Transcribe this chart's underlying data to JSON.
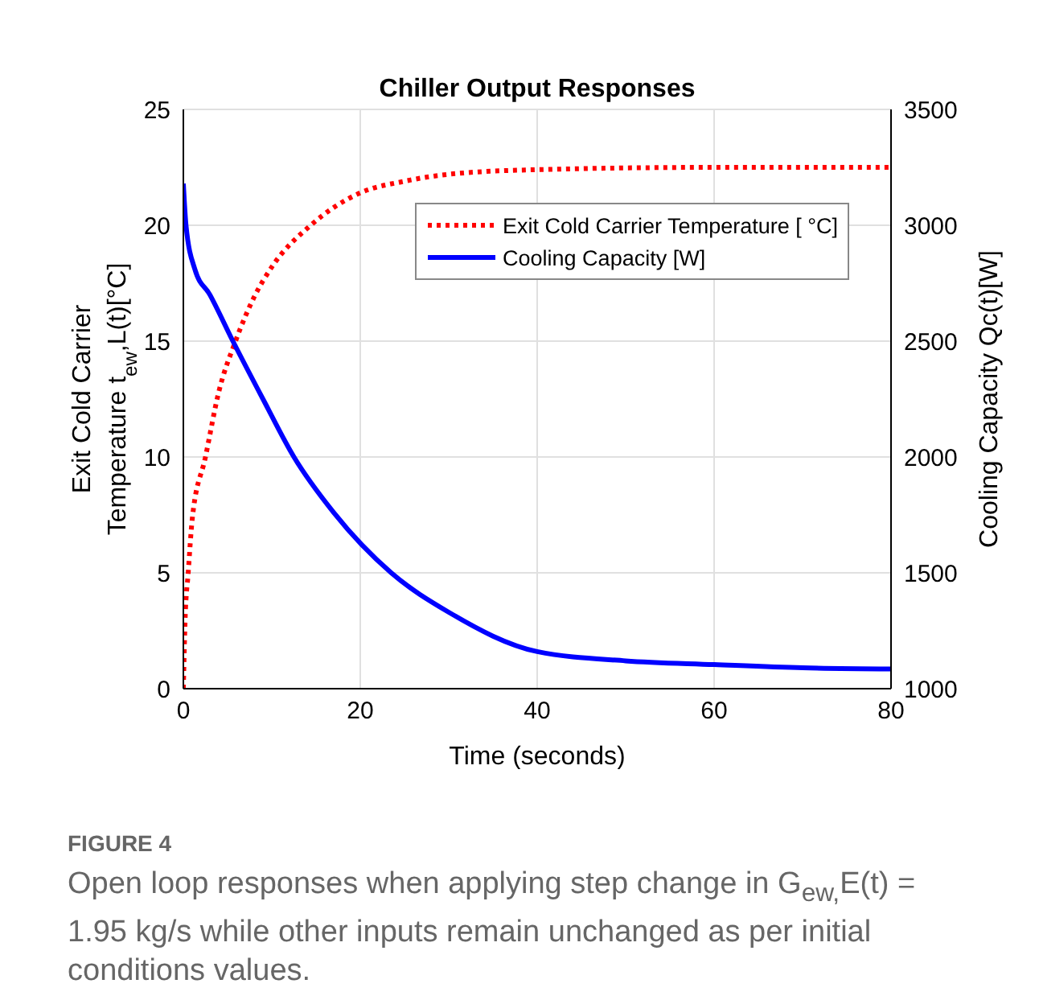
{
  "chart_data": {
    "type": "line",
    "title": "Chiller Output Responses",
    "xlabel": "Time (seconds)",
    "ylabel": "Exit Cold Carrier\nTemperature t$_{ew}$,L(t)[°C]",
    "y2label": "Cooling Capacity Qc(t)[W]",
    "xlim": [
      0,
      80
    ],
    "xticks": [
      0,
      20,
      40,
      60,
      80
    ],
    "ylim": [
      0,
      25
    ],
    "yticks": [
      0,
      5,
      10,
      15,
      20,
      25
    ],
    "y2lim": [
      1000,
      3500
    ],
    "y2ticks": [
      1000,
      1500,
      2000,
      2500,
      3000,
      3500
    ],
    "grid": true,
    "legend": "top right",
    "marker": "none",
    "series": [
      {
        "name": "Exit Cold Carrier Temperature [ °C]",
        "color": "#ff0000",
        "line_style": "dotted",
        "x": [
          0,
          0.2,
          0.55,
          1,
          2.5,
          4,
          5.9,
          8,
          10,
          14.4,
          20,
          25,
          30,
          40,
          60,
          80
        ],
        "values": [
          0,
          3,
          5,
          7.3,
          10,
          12.8,
          15,
          16.9,
          18.2,
          20,
          21.4,
          21.9,
          22.2,
          22.4,
          22.5,
          22.5
        ]
      },
      {
        "name": "Cooling Capacity [W]",
        "color": "#0000ff",
        "line_style": "solid",
        "axis": "y2",
        "x": [
          0,
          0.3,
          1.3,
          3,
          5.6,
          9,
          12.5,
          17,
          23.5,
          30,
          40,
          50,
          60,
          70,
          80
        ],
        "values": [
          3180,
          3000,
          2810,
          2700,
          2500,
          2250,
          2000,
          1760,
          1500,
          1330,
          1160,
          1120,
          1104,
          1090,
          1085
        ]
      }
    ],
    "annotations": [
      "FIGURE 4",
      "Open loop responses when applying step change in G$_{ew,}$E(t) = 1.95 kg/s while other inputs remain unchanged as per initial conditions values."
    ]
  }
}
